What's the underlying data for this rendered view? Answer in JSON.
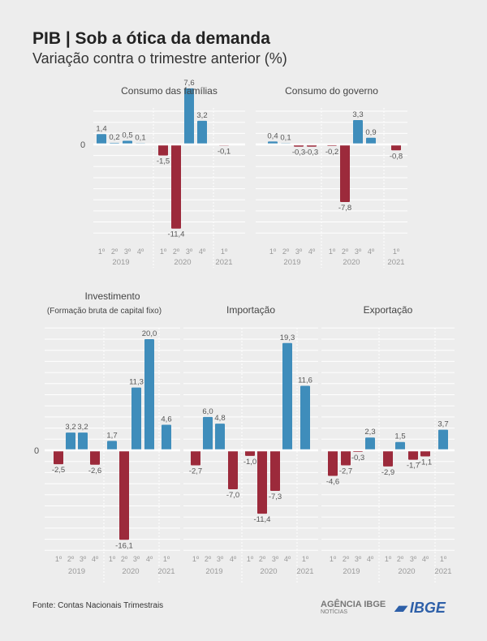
{
  "header": {
    "title": "PIB | Sob a ótica da demanda",
    "subtitle": "Variação contra o trimestre anterior (%)"
  },
  "footer": {
    "source": "Fonte: Contas Nacionais Trimestrais",
    "logo_agencia": "AGÊNCIA IBGE",
    "logo_agencia_sub": "NOTÍCIAS",
    "logo_ibge": "IBGE"
  },
  "colors": {
    "positive": "#3f8dbb",
    "negative": "#9c2a3b",
    "background": "#ededed",
    "grid": "#ffffff"
  },
  "chart_data": [
    {
      "type": "bar",
      "title": "Consumo das famílias",
      "subtitle": "",
      "zero_label": "0",
      "quarters": [
        "1º",
        "2º",
        "3º",
        "4º",
        "1º",
        "2º",
        "3º",
        "4º",
        "1º"
      ],
      "years": [
        "2019",
        "2020",
        "2021"
      ],
      "values": [
        1.4,
        0.2,
        0.5,
        0.1,
        -1.5,
        -11.4,
        7.6,
        3.2,
        -0.1
      ],
      "labels": [
        "1,4",
        "0,2",
        "0,5",
        "0,1",
        "-1,5",
        "-11,4",
        "7,6",
        "3,2",
        "-0,1"
      ]
    },
    {
      "type": "bar",
      "title": "Consumo do governo",
      "subtitle": "",
      "zero_label": "",
      "quarters": [
        "1º",
        "2º",
        "3º",
        "4º",
        "1º",
        "2º",
        "3º",
        "4º",
        "1º"
      ],
      "years": [
        "2019",
        "2020",
        "2021"
      ],
      "values": [
        0.4,
        0.1,
        -0.3,
        -0.3,
        -0.2,
        -7.8,
        3.3,
        0.9,
        -0.8
      ],
      "labels": [
        "0,4",
        "0,1",
        "-0,3",
        "-0,3",
        "-0,2",
        "-7,8",
        "3,3",
        "0,9",
        "-0,8"
      ]
    },
    {
      "type": "bar",
      "title": "Investimento",
      "subtitle": "(Formação bruta de capital fixo)",
      "zero_label": "0",
      "quarters": [
        "1º",
        "2º",
        "3º",
        "4º",
        "1º",
        "2º",
        "3º",
        "4º",
        "1º"
      ],
      "years": [
        "2019",
        "2020",
        "2021"
      ],
      "values": [
        -2.5,
        3.2,
        3.2,
        -2.6,
        1.7,
        -16.1,
        11.3,
        20.0,
        4.6
      ],
      "labels": [
        "-2,5",
        "3,2",
        "3,2",
        "-2,6",
        "1,7",
        "-16,1",
        "11,3",
        "20,0",
        "4,6"
      ]
    },
    {
      "type": "bar",
      "title": "Importação",
      "subtitle": "",
      "zero_label": "",
      "quarters": [
        "1º",
        "2º",
        "3º",
        "4º",
        "1º",
        "2º",
        "3º",
        "4º",
        "1º"
      ],
      "years": [
        "2019",
        "2020",
        "2021"
      ],
      "values": [
        -2.7,
        6.0,
        4.8,
        -7.0,
        -1.0,
        -11.4,
        -7.3,
        19.3,
        11.6
      ],
      "labels": [
        "-2,7",
        "6,0",
        "4,8",
        "-7,0",
        "-1,0",
        "-11,4",
        "-7,3",
        "19,3",
        "11,6"
      ]
    },
    {
      "type": "bar",
      "title": "Exportação",
      "subtitle": "",
      "zero_label": "",
      "quarters": [
        "1º",
        "2º",
        "3º",
        "4º",
        "1º",
        "2º",
        "3º",
        "4º",
        "1º"
      ],
      "years": [
        "2019",
        "2020",
        "2021"
      ],
      "values": [
        -4.6,
        -2.7,
        -0.3,
        2.3,
        -2.9,
        1.5,
        -1.7,
        -1.1,
        3.7
      ],
      "labels": [
        "-4,6",
        "-2,7",
        "-0,3",
        "2,3",
        "-2,9",
        "1,5",
        "-1,7",
        "-1,1",
        "3,7"
      ]
    }
  ]
}
